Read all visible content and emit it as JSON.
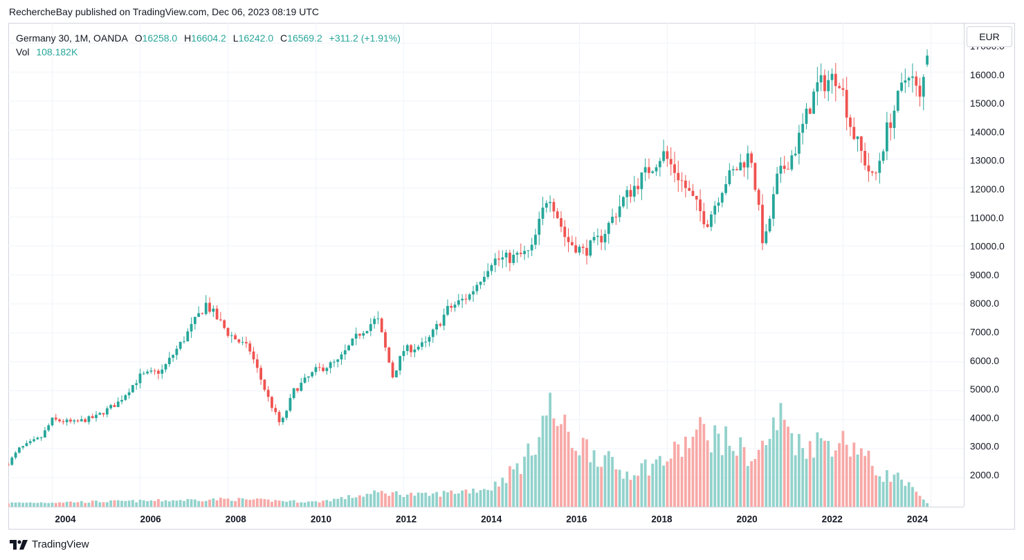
{
  "publication": "RechercheBay published on TradingView.com, Dec 06, 2023 08:19 UTC",
  "legend": {
    "symbol": "Germany 30, 1M, OANDA",
    "o_label": "O",
    "o_value": "16258.0",
    "h_label": "H",
    "h_value": "16604.2",
    "l_label": "L",
    "l_value": "16242.0",
    "c_label": "C",
    "c_value": "16569.2",
    "change": "+311.2 (+1.91%)",
    "vol_label": "Vol",
    "vol_value": "108.182K"
  },
  "currency_button": "EUR",
  "footer": {
    "brand": "TradingView"
  },
  "colors": {
    "up": "#26a69a",
    "down": "#ef5350",
    "vol_up": "#92d2cc",
    "vol_down": "#f7a9a7",
    "grid": "#f0f3fa"
  },
  "chart_data": {
    "type": "candlestick",
    "interval": "1M",
    "y_ticks": [
      "17000.0",
      "16000.0",
      "15000.0",
      "14000.0",
      "13000.0",
      "12000.0",
      "11000.0",
      "10000.0",
      "9000.0",
      "8000.0",
      "7000.0",
      "6000.0",
      "5000.0",
      "4000.0",
      "3000.0",
      "2000.0"
    ],
    "x_ticks": [
      "2004",
      "2006",
      "2008",
      "2010",
      "2012",
      "2014",
      "2016",
      "2018",
      "2020",
      "2022",
      "2024"
    ],
    "x_range": [
      2003.0,
      2024.75
    ],
    "price_range": [
      1000,
      17700
    ],
    "volume_max_k": 1300,
    "anchor_closes": [
      [
        2003.0,
        2500
      ],
      [
        2003.25,
        3000
      ],
      [
        2003.75,
        3400
      ],
      [
        2004.0,
        4000
      ],
      [
        2004.5,
        3900
      ],
      [
        2005.0,
        4100
      ],
      [
        2005.5,
        4600
      ],
      [
        2006.0,
        5500
      ],
      [
        2006.5,
        5700
      ],
      [
        2007.0,
        6800
      ],
      [
        2007.5,
        8000
      ],
      [
        2008.0,
        7000
      ],
      [
        2008.5,
        6400
      ],
      [
        2008.9,
        4800
      ],
      [
        2009.2,
        3800
      ],
      [
        2009.5,
        5000
      ],
      [
        2010.0,
        5700
      ],
      [
        2010.5,
        6000
      ],
      [
        2011.0,
        7000
      ],
      [
        2011.4,
        7500
      ],
      [
        2011.75,
        5500
      ],
      [
        2012.0,
        6400
      ],
      [
        2012.5,
        6600
      ],
      [
        2013.0,
        7800
      ],
      [
        2013.5,
        8300
      ],
      [
        2014.0,
        9500
      ],
      [
        2014.5,
        9600
      ],
      [
        2014.9,
        9800
      ],
      [
        2015.3,
        11900
      ],
      [
        2015.7,
        10200
      ],
      [
        2016.1,
        9800
      ],
      [
        2016.5,
        10300
      ],
      [
        2017.0,
        11600
      ],
      [
        2017.5,
        12500
      ],
      [
        2017.9,
        13200
      ],
      [
        2018.3,
        12300
      ],
      [
        2018.9,
        10800
      ],
      [
        2019.3,
        12200
      ],
      [
        2019.9,
        13200
      ],
      [
        2020.2,
        9900
      ],
      [
        2020.5,
        12300
      ],
      [
        2020.9,
        13300
      ],
      [
        2021.4,
        15500
      ],
      [
        2021.9,
        15900
      ],
      [
        2022.2,
        14000
      ],
      [
        2022.7,
        12200
      ],
      [
        2023.0,
        14000
      ],
      [
        2023.5,
        16100
      ],
      [
        2023.75,
        15000
      ],
      [
        2023.92,
        16569.2
      ]
    ],
    "anchor_volumes_k": [
      [
        2003.0,
        40
      ],
      [
        2006.0,
        60
      ],
      [
        2008.0,
        80
      ],
      [
        2010.0,
        50
      ],
      [
        2011.5,
        150
      ],
      [
        2012.5,
        120
      ],
      [
        2014.0,
        200
      ],
      [
        2014.8,
        500
      ],
      [
        2015.3,
        1050
      ],
      [
        2015.8,
        700
      ],
      [
        2016.3,
        600
      ],
      [
        2017.0,
        350
      ],
      [
        2018.0,
        500
      ],
      [
        2018.8,
        800
      ],
      [
        2019.5,
        650
      ],
      [
        2020.0,
        500
      ],
      [
        2020.6,
        950
      ],
      [
        2021.0,
        650
      ],
      [
        2021.8,
        700
      ],
      [
        2022.3,
        650
      ],
      [
        2022.8,
        350
      ],
      [
        2023.3,
        300
      ],
      [
        2023.92,
        30
      ]
    ]
  }
}
